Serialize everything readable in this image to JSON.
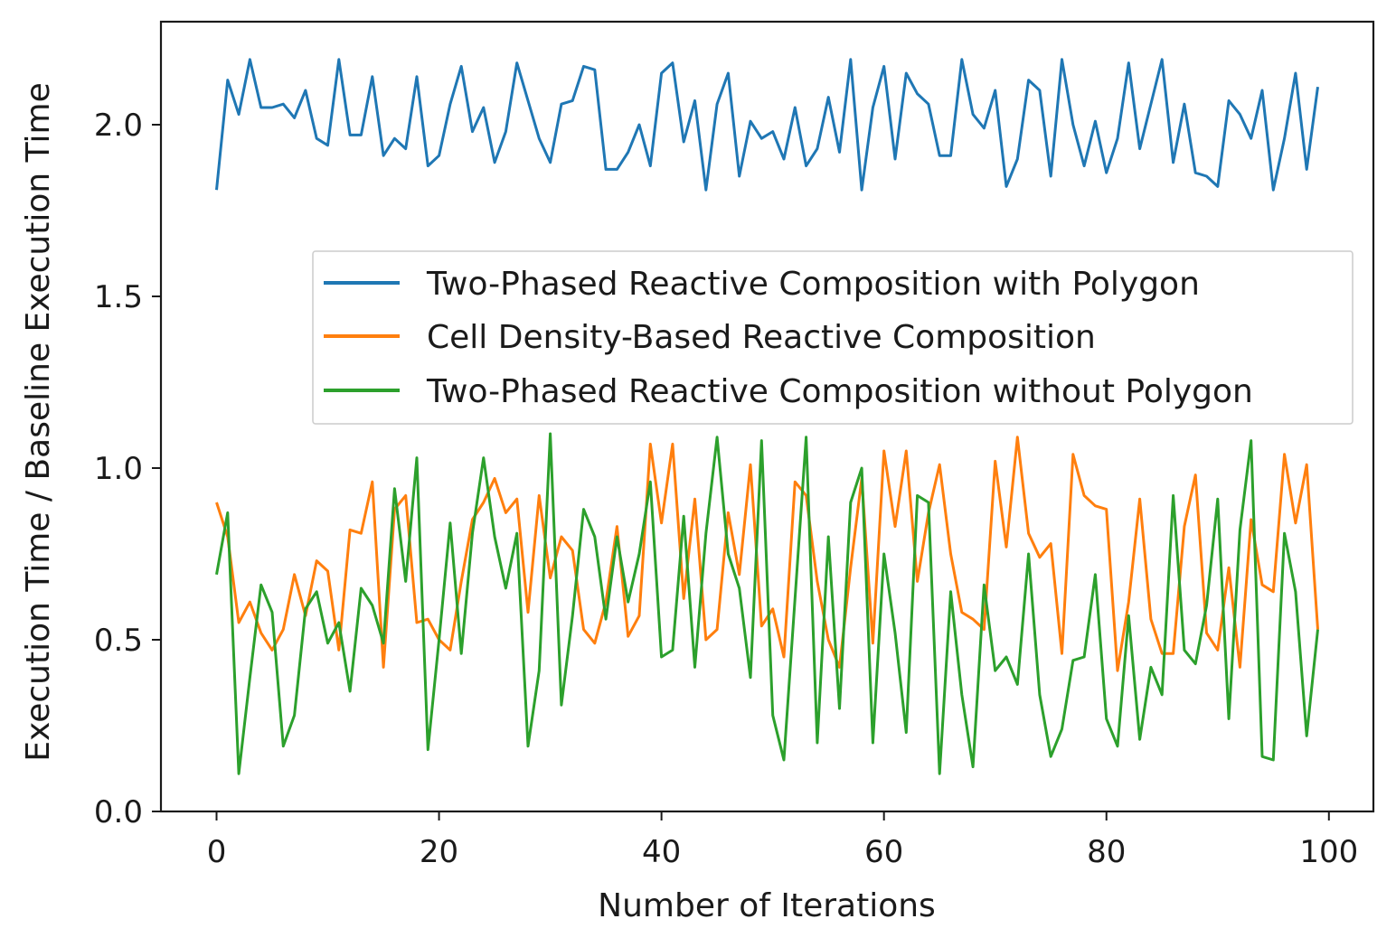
{
  "chart_data": {
    "type": "line",
    "title": "",
    "xlabel": "Number of Iterations",
    "ylabel": "Execution Time / Baseline Execution Time",
    "xlim": [
      -5,
      104
    ],
    "ylim": [
      0,
      2.3
    ],
    "xticks": [
      0,
      20,
      40,
      60,
      80,
      100
    ],
    "xtick_labels": [
      "0",
      "20",
      "40",
      "60",
      "80",
      "100"
    ],
    "yticks": [
      0,
      0.5,
      1.0,
      1.5,
      2.0
    ],
    "ytick_labels": [
      "0.0",
      "0.5",
      "1.0",
      "1.5",
      "2.0"
    ],
    "grid": false,
    "legend_position": "center-right",
    "series": [
      {
        "name": "Two-Phased Reactive Composition with Polygon",
        "color": "#1f77b4",
        "values": [
          1.81,
          2.13,
          2.03,
          2.19,
          2.05,
          2.05,
          2.06,
          2.02,
          2.1,
          1.96,
          1.94,
          2.19,
          1.97,
          1.97,
          2.14,
          1.91,
          1.96,
          1.93,
          2.14,
          1.88,
          1.91,
          2.06,
          2.17,
          1.98,
          2.05,
          1.89,
          1.98,
          2.18,
          2.07,
          1.96,
          1.89,
          2.06,
          2.07,
          2.17,
          2.16,
          1.87,
          1.87,
          1.92,
          2.0,
          1.88,
          2.15,
          2.18,
          1.95,
          2.07,
          1.81,
          2.06,
          2.15,
          1.85,
          2.01,
          1.96,
          1.98,
          1.9,
          2.05,
          1.88,
          1.93,
          2.08,
          1.92,
          2.19,
          1.81,
          2.05,
          2.17,
          1.9,
          2.15,
          2.09,
          2.06,
          1.91,
          1.91,
          2.19,
          2.03,
          1.99,
          2.1,
          1.82,
          1.9,
          2.13,
          2.1,
          1.85,
          2.19,
          2.0,
          1.88,
          2.01,
          1.86,
          1.96,
          2.18,
          1.93,
          2.06,
          2.19,
          1.89,
          2.06,
          1.86,
          1.85,
          1.82,
          2.07,
          2.03,
          1.96,
          2.1,
          1.81,
          1.96,
          2.15,
          1.87,
          2.11
        ]
      },
      {
        "name": "Cell Density-Based Reactive Composition",
        "color": "#ff7f0e",
        "values": [
          0.9,
          0.8,
          0.55,
          0.61,
          0.52,
          0.47,
          0.53,
          0.69,
          0.57,
          0.73,
          0.7,
          0.47,
          0.82,
          0.81,
          0.96,
          0.42,
          0.88,
          0.92,
          0.55,
          0.56,
          0.5,
          0.47,
          0.67,
          0.85,
          0.9,
          0.97,
          0.87,
          0.91,
          0.58,
          0.92,
          0.68,
          0.8,
          0.76,
          0.53,
          0.49,
          0.61,
          0.83,
          0.51,
          0.57,
          1.07,
          0.84,
          1.07,
          0.62,
          0.91,
          0.5,
          0.53,
          0.87,
          0.69,
          1.01,
          0.54,
          0.59,
          0.45,
          0.96,
          0.92,
          0.67,
          0.5,
          0.42,
          0.71,
          0.97,
          0.49,
          1.05,
          0.83,
          1.05,
          0.67,
          0.87,
          1.01,
          0.75,
          0.58,
          0.56,
          0.53,
          1.02,
          0.77,
          1.09,
          0.81,
          0.74,
          0.78,
          0.46,
          1.04,
          0.92,
          0.89,
          0.88,
          0.41,
          0.61,
          0.91,
          0.56,
          0.46,
          0.46,
          0.83,
          0.98,
          0.52,
          0.47,
          0.71,
          0.42,
          0.85,
          0.66,
          0.64,
          1.04,
          0.84,
          1.01,
          0.53
        ]
      },
      {
        "name": "Two-Phased Reactive Composition without Polygon",
        "color": "#2ca02c",
        "values": [
          0.69,
          0.87,
          0.11,
          0.39,
          0.66,
          0.58,
          0.19,
          0.28,
          0.59,
          0.64,
          0.49,
          0.55,
          0.35,
          0.65,
          0.6,
          0.49,
          0.94,
          0.67,
          1.03,
          0.18,
          0.5,
          0.84,
          0.46,
          0.81,
          1.03,
          0.8,
          0.65,
          0.81,
          0.19,
          0.41,
          1.1,
          0.31,
          0.57,
          0.88,
          0.8,
          0.56,
          0.8,
          0.61,
          0.75,
          0.96,
          0.45,
          0.47,
          0.86,
          0.42,
          0.81,
          1.09,
          0.75,
          0.65,
          0.39,
          1.08,
          0.28,
          0.15,
          0.62,
          1.09,
          0.2,
          0.8,
          0.3,
          0.9,
          1.0,
          0.2,
          0.75,
          0.52,
          0.23,
          0.92,
          0.9,
          0.11,
          0.64,
          0.34,
          0.13,
          0.66,
          0.41,
          0.45,
          0.37,
          0.75,
          0.34,
          0.16,
          0.24,
          0.44,
          0.45,
          0.69,
          0.27,
          0.19,
          0.57,
          0.21,
          0.42,
          0.34,
          0.92,
          0.47,
          0.43,
          0.6,
          0.91,
          0.27,
          0.82,
          1.08,
          0.16,
          0.15,
          0.81,
          0.64,
          0.22,
          0.53
        ]
      }
    ]
  }
}
